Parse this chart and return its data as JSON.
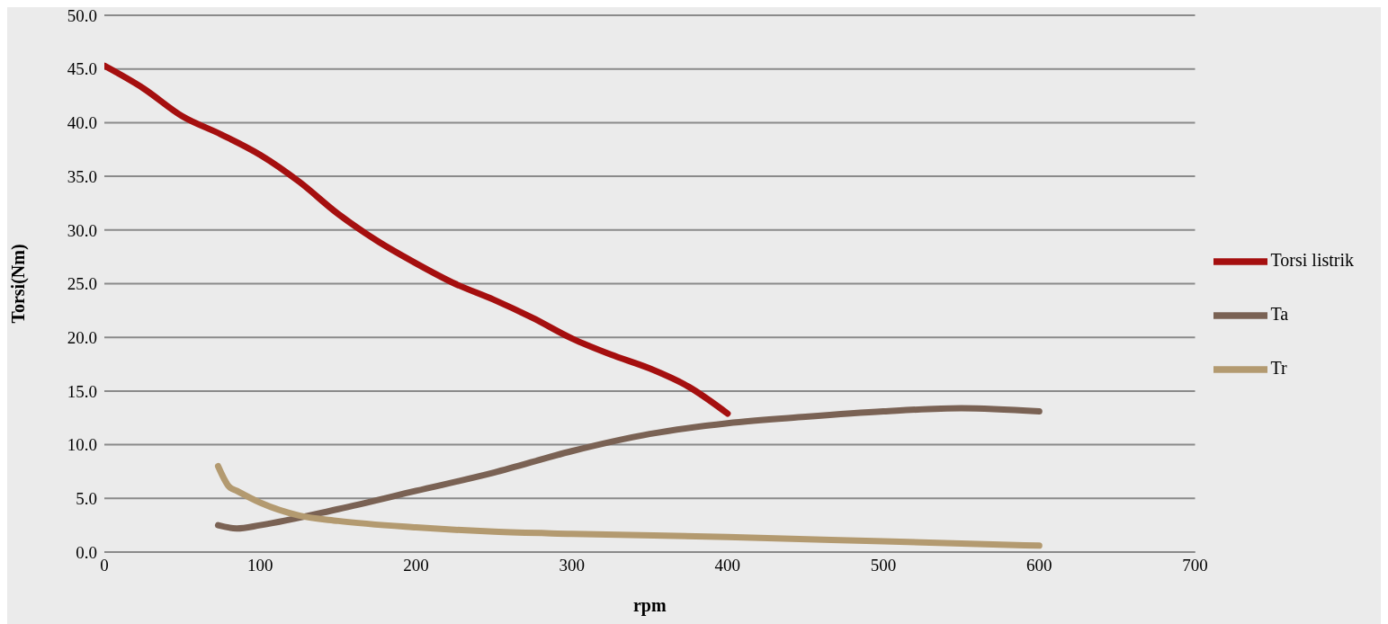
{
  "chart_data": {
    "type": "line",
    "xlabel": "rpm",
    "ylabel": "Torsi(Nm)",
    "xlim": [
      0,
      700
    ],
    "xticks": [
      0,
      100,
      200,
      300,
      400,
      500,
      600,
      700
    ],
    "ylim": [
      0,
      50
    ],
    "yticks": [
      {
        "value": 0,
        "label": "0.0"
      },
      {
        "value": 5,
        "label": "5.0"
      },
      {
        "value": 10,
        "label": "10.0"
      },
      {
        "value": 15,
        "label": "15.0"
      },
      {
        "value": 20,
        "label": "20.0"
      },
      {
        "value": 25,
        "label": "25.0"
      },
      {
        "value": 30,
        "label": "30.0"
      },
      {
        "value": 35,
        "label": "35.0"
      },
      {
        "value": 40,
        "label": "40.0"
      },
      {
        "value": 45,
        "label": "45.0"
      },
      {
        "value": 50,
        "label": "50.0"
      }
    ],
    "grid": "y",
    "legend": "right",
    "marker": "none",
    "line_style": "solid",
    "series": [
      {
        "name": "Torsi listrik",
        "color": "#a50f0f",
        "x": [
          0,
          25,
          50,
          75,
          100,
          125,
          150,
          175,
          200,
          225,
          250,
          275,
          300,
          325,
          350,
          375,
          400
        ],
        "values": [
          45.3,
          43.2,
          40.6,
          38.9,
          37.0,
          34.5,
          31.5,
          29.0,
          26.9,
          25.0,
          23.5,
          21.8,
          19.9,
          18.4,
          17.1,
          15.4,
          12.9
        ]
      },
      {
        "name": "Ta",
        "color": "#7a6254",
        "x": [
          73,
          85,
          100,
          150,
          200,
          250,
          300,
          350,
          400,
          450,
          500,
          550,
          600
        ],
        "values": [
          2.5,
          2.2,
          2.5,
          4.0,
          5.7,
          7.4,
          9.4,
          11.0,
          12.0,
          12.6,
          13.1,
          13.4,
          13.1
        ]
      },
      {
        "name": "Tr",
        "color": "#b39a70",
        "x": [
          73,
          80,
          85,
          100,
          125,
          150,
          200,
          250,
          300,
          400,
          500,
          600
        ],
        "values": [
          8.0,
          6.1,
          5.7,
          4.6,
          3.4,
          2.9,
          2.3,
          1.9,
          1.7,
          1.4,
          1.0,
          0.6
        ]
      }
    ]
  }
}
